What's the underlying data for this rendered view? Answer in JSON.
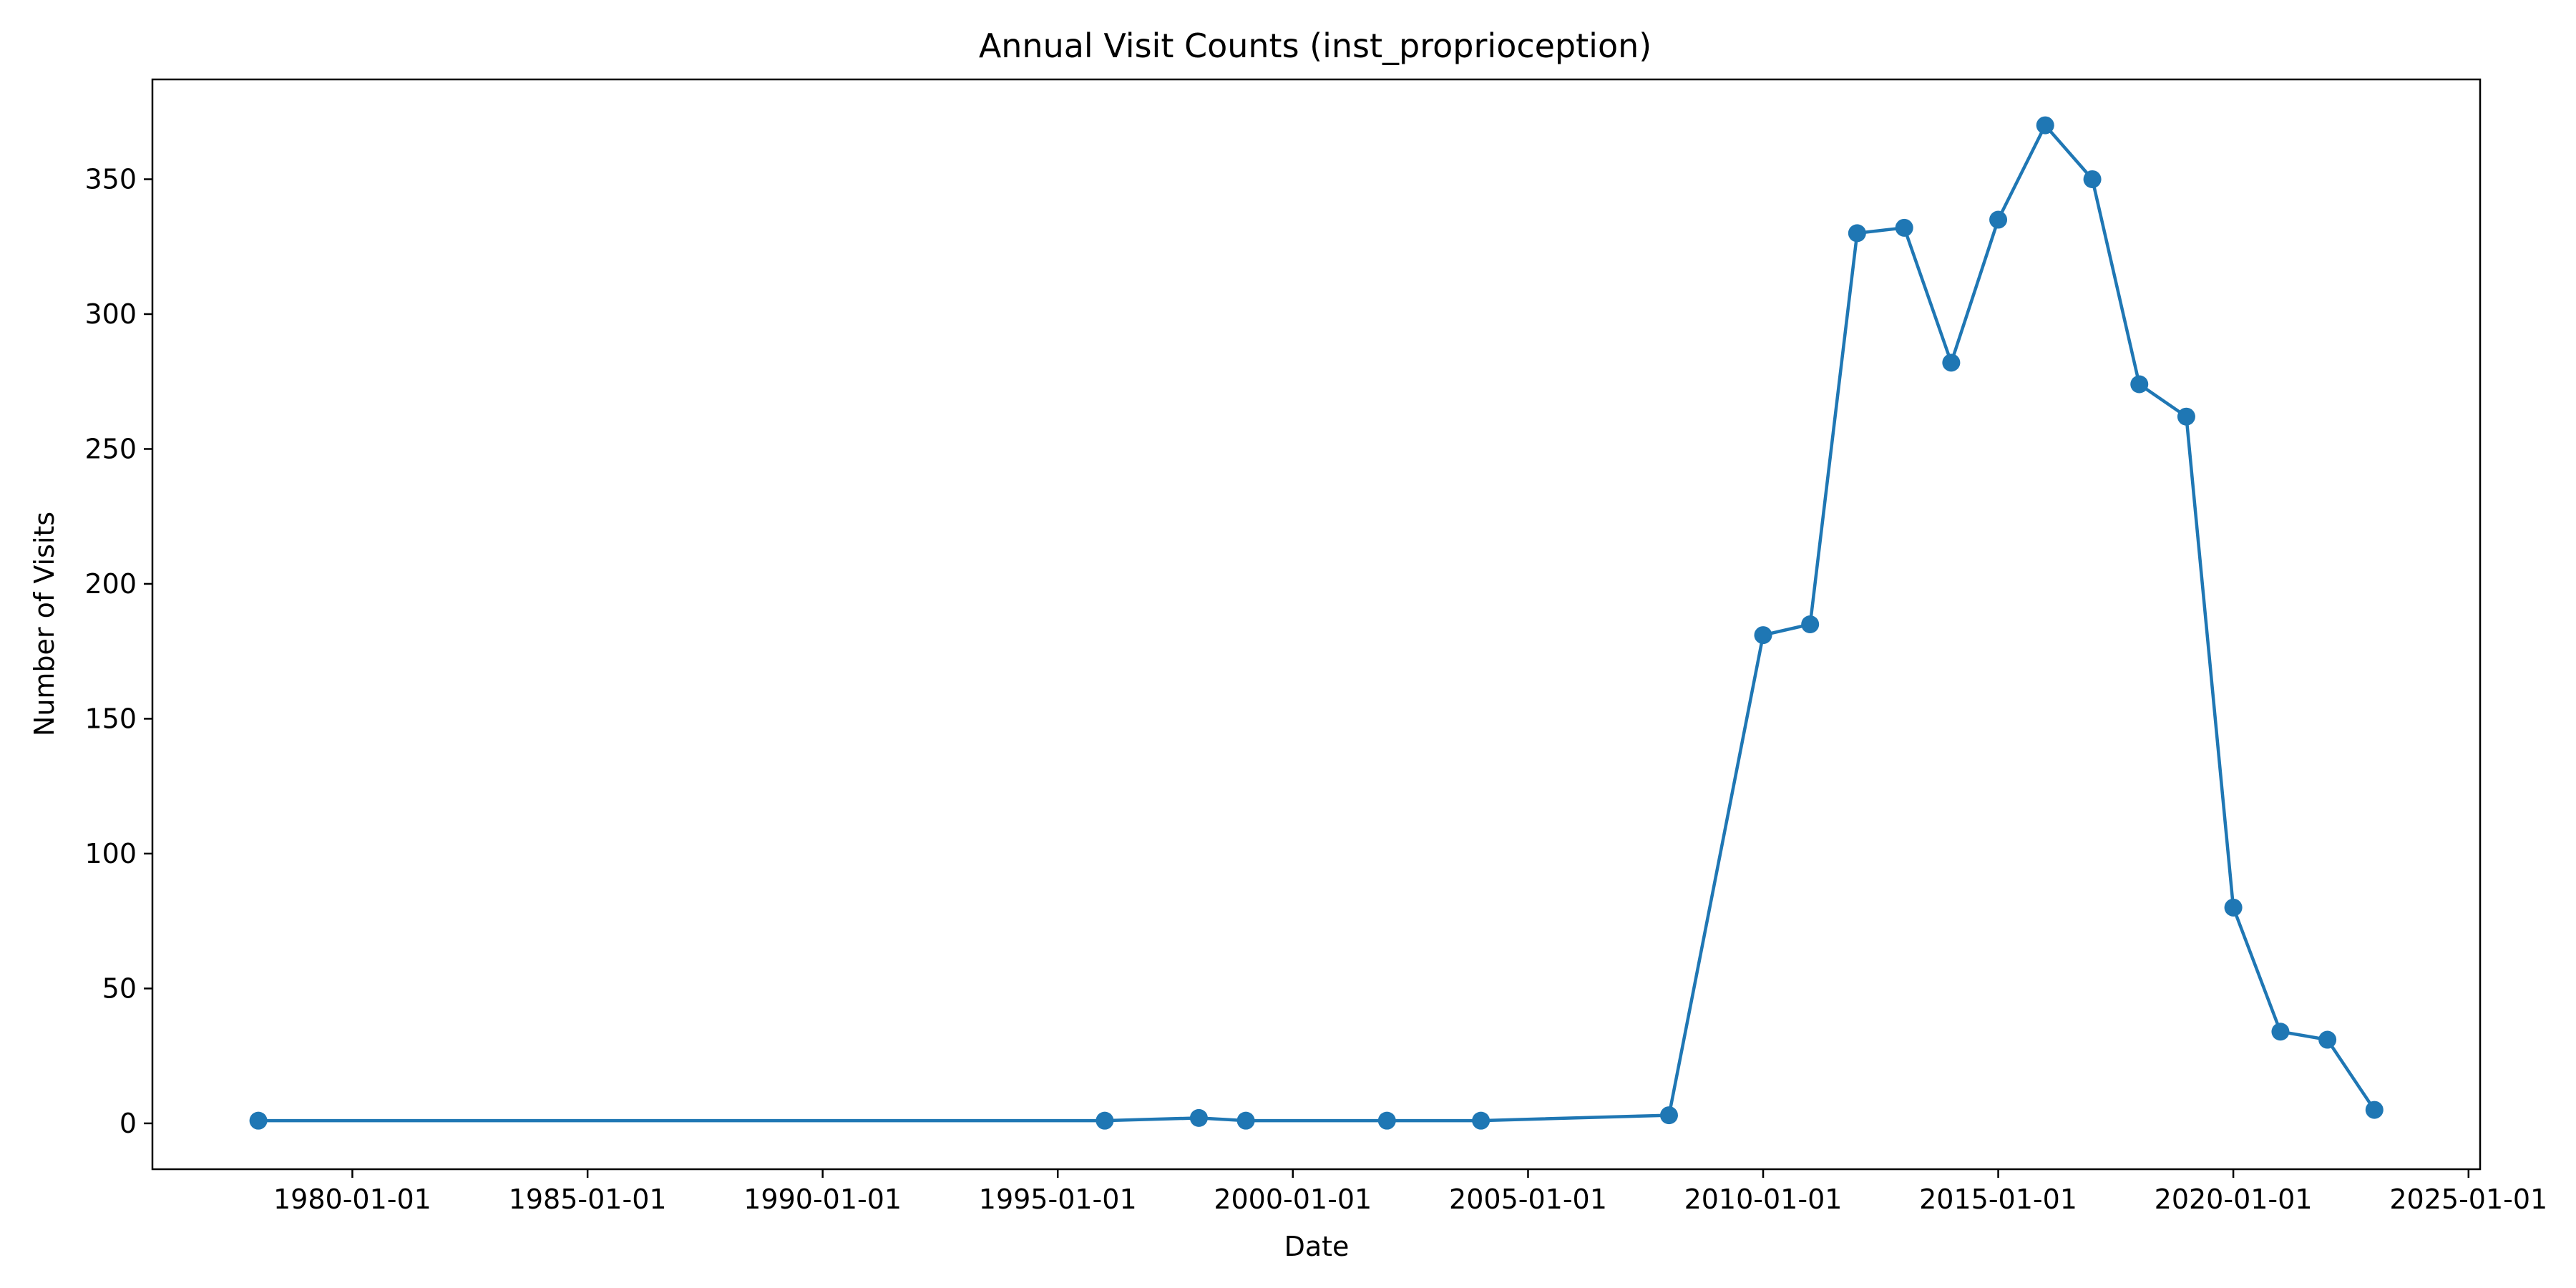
{
  "chart_data": {
    "type": "line",
    "title": "Annual Visit Counts (inst_proprioception)",
    "xlabel": "Date",
    "ylabel": "Number of Visits",
    "xlim": [
      "1975-10-01",
      "2025-04-01"
    ],
    "ylim": [
      -17,
      387
    ],
    "x_ticks": [
      "1980-01-01",
      "1985-01-01",
      "1990-01-01",
      "1995-01-01",
      "2000-01-01",
      "2005-01-01",
      "2010-01-01",
      "2015-01-01",
      "2020-01-01",
      "2025-01-01"
    ],
    "y_ticks": [
      0,
      50,
      100,
      150,
      200,
      250,
      300,
      350
    ],
    "grid": false,
    "series": [
      {
        "color": "#1f77b4",
        "marker": "circle",
        "points": [
          {
            "x": "1978-01-01",
            "y": 1
          },
          {
            "x": "1996-01-01",
            "y": 1
          },
          {
            "x": "1998-01-01",
            "y": 2
          },
          {
            "x": "1999-01-01",
            "y": 1
          },
          {
            "x": "2002-01-01",
            "y": 1
          },
          {
            "x": "2004-01-01",
            "y": 1
          },
          {
            "x": "2008-01-01",
            "y": 3
          },
          {
            "x": "2010-01-01",
            "y": 181
          },
          {
            "x": "2011-01-01",
            "y": 185
          },
          {
            "x": "2012-01-01",
            "y": 330
          },
          {
            "x": "2013-01-01",
            "y": 332
          },
          {
            "x": "2014-01-01",
            "y": 282
          },
          {
            "x": "2015-01-01",
            "y": 335
          },
          {
            "x": "2016-01-01",
            "y": 370
          },
          {
            "x": "2017-01-01",
            "y": 350
          },
          {
            "x": "2018-01-01",
            "y": 274
          },
          {
            "x": "2019-01-01",
            "y": 262
          },
          {
            "x": "2020-01-01",
            "y": 80
          },
          {
            "x": "2021-01-01",
            "y": 34
          },
          {
            "x": "2022-01-01",
            "y": 31
          },
          {
            "x": "2023-01-01",
            "y": 5
          }
        ]
      }
    ]
  }
}
